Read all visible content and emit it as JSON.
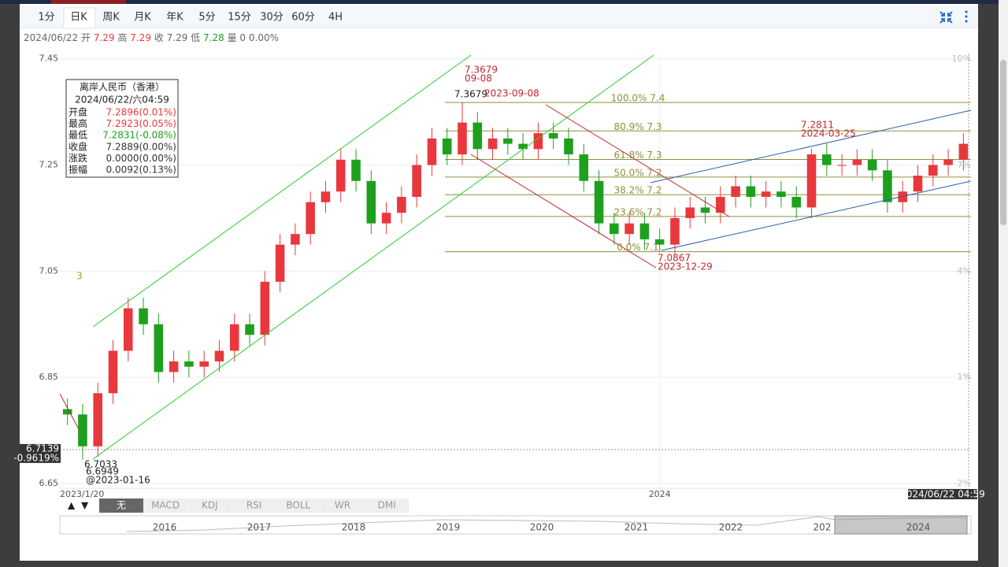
{
  "tabs": [
    "1分",
    "日K",
    "周K",
    "月K",
    "年K",
    "5分",
    "15分",
    "30分",
    "60分",
    "4H"
  ],
  "active_tab": 1,
  "info_bar": {
    "date": "2024/06/22",
    "items": [
      {
        "label": "开",
        "value": 7.29,
        "color": "#e8383d"
      },
      {
        "label": "高",
        "value": 7.29,
        "color": "#e8383d"
      },
      {
        "label": "收",
        "value": 7.29,
        "color": "#666666"
      },
      {
        "label": "低",
        "value": 7.28,
        "color": "#1ea01e"
      },
      {
        "label": "量",
        "value": 0,
        "color": "#666666"
      }
    ],
    "change": "0.00%"
  },
  "tooltip": {
    "title": "离岸人民币（香港）",
    "date": "2024/06/22/六04:59",
    "rows": [
      {
        "label": "开盘",
        "value": "7.2896(0.01%)",
        "color": "#e8383d"
      },
      {
        "label": "最高",
        "value": "7.2923(0.05%)",
        "color": "#e8383d"
      },
      {
        "label": "最低",
        "value": "7.2831(-0.08%)",
        "color": "#1ea01e"
      },
      {
        "label": "收盘",
        "value": "7.2889(0.00%)",
        "color": "#333333"
      },
      {
        "label": "涨跌",
        "value": "0.0000(0.00%)",
        "color": "#333333"
      },
      {
        "label": "振幅",
        "value": "0.0092(0.13%)",
        "color": "#333333"
      }
    ]
  },
  "chart_data": {
    "type": "candlestick",
    "categories": [
      "2023/1/20",
      null,
      null,
      null,
      null,
      null,
      null,
      null,
      null,
      null,
      null,
      null,
      null,
      null,
      null,
      null,
      null,
      null,
      null,
      null,
      null,
      null,
      null,
      null,
      null,
      null,
      null,
      null,
      null,
      null,
      null,
      null,
      null,
      null,
      null,
      null,
      null,
      null,
      null,
      "2024",
      null,
      null,
      null,
      null,
      null,
      null,
      null,
      null,
      null,
      null,
      null,
      null,
      null,
      null,
      null,
      null,
      null,
      null,
      null,
      null
    ],
    "open": [
      6.79,
      6.78,
      6.72,
      6.82,
      6.9,
      6.98,
      6.95,
      6.86,
      6.88,
      6.87,
      6.88,
      6.9,
      6.95,
      6.93,
      7.03,
      7.1,
      7.12,
      7.18,
      7.2,
      7.26,
      7.22,
      7.14,
      7.16,
      7.19,
      7.25,
      7.3,
      7.27,
      7.33,
      7.28,
      7.3,
      7.29,
      7.28,
      7.31,
      7.3,
      7.27,
      7.22,
      7.14,
      7.12,
      7.14,
      7.11,
      7.1,
      7.15,
      7.17,
      7.16,
      7.19,
      7.21,
      7.19,
      7.2,
      7.19,
      7.17,
      7.27,
      7.25,
      7.25,
      7.26,
      7.24,
      7.18,
      7.2,
      7.23,
      7.25,
      7.26
    ],
    "high": [
      6.81,
      6.8,
      6.84,
      6.92,
      7.0,
      7.0,
      6.97,
      6.9,
      6.9,
      6.9,
      6.92,
      6.97,
      6.97,
      7.05,
      7.12,
      7.14,
      7.2,
      7.22,
      7.28,
      7.28,
      7.24,
      7.18,
      7.21,
      7.27,
      7.32,
      7.32,
      7.3679,
      7.35,
      7.32,
      7.32,
      7.31,
      7.33,
      7.33,
      7.32,
      7.29,
      7.24,
      7.16,
      7.16,
      7.16,
      7.13,
      7.17,
      7.19,
      7.19,
      7.21,
      7.23,
      7.23,
      7.22,
      7.22,
      7.21,
      7.2811,
      7.29,
      7.27,
      7.28,
      7.28,
      7.26,
      7.22,
      7.25,
      7.27,
      7.28,
      7.31
    ],
    "low": [
      6.76,
      6.6949,
      6.7,
      6.8,
      6.88,
      6.93,
      6.84,
      6.84,
      6.85,
      6.85,
      6.86,
      6.88,
      6.91,
      6.91,
      7.01,
      7.08,
      7.1,
      7.16,
      7.18,
      7.2,
      7.12,
      7.12,
      7.14,
      7.17,
      7.23,
      7.25,
      7.25,
      7.26,
      7.26,
      7.27,
      7.26,
      7.26,
      7.28,
      7.25,
      7.2,
      7.12,
      7.1,
      7.1,
      7.09,
      7.0867,
      7.08,
      7.13,
      7.14,
      7.14,
      7.17,
      7.17,
      7.17,
      7.17,
      7.15,
      7.15,
      7.23,
      7.23,
      7.23,
      7.22,
      7.16,
      7.16,
      7.18,
      7.21,
      7.23,
      7.24
    ],
    "close": [
      6.78,
      6.72,
      6.82,
      6.9,
      6.98,
      6.95,
      6.86,
      6.88,
      6.87,
      6.88,
      6.9,
      6.95,
      6.93,
      7.03,
      7.1,
      7.12,
      7.18,
      7.2,
      7.26,
      7.22,
      7.14,
      7.16,
      7.19,
      7.25,
      7.3,
      7.27,
      7.33,
      7.28,
      7.3,
      7.29,
      7.28,
      7.31,
      7.3,
      7.27,
      7.22,
      7.14,
      7.12,
      7.14,
      7.11,
      7.1,
      7.15,
      7.17,
      7.16,
      7.19,
      7.21,
      7.19,
      7.2,
      7.19,
      7.17,
      7.27,
      7.25,
      7.25,
      7.26,
      7.24,
      7.18,
      7.2,
      7.23,
      7.25,
      7.26,
      7.29
    ],
    "up_color": "#e8383d",
    "down_color": "#1ea01e",
    "ylim": [
      6.641,
      7.46
    ],
    "yticks": [
      6.65,
      6.85,
      7.05,
      7.25,
      7.45
    ],
    "y2lim": [
      -2.134,
      10.156
    ],
    "y2ticks": [
      {
        "value": -2,
        "label": "-2%"
      },
      {
        "value": 1,
        "label": "1%"
      },
      {
        "value": 4,
        "label": "4%"
      },
      {
        "value": 7,
        "label": "7%"
      },
      {
        "value": 10,
        "label": "10%"
      }
    ],
    "grid": true,
    "fib_levels": [
      {
        "value": 7.3679,
        "label": "100.0% 7.4"
      },
      {
        "value": 7.3142,
        "label": "80.9% 7.3"
      },
      {
        "value": 7.2605,
        "label": "61.8% 7.3"
      },
      {
        "value": 7.2273,
        "label": "50.0% 7.2"
      },
      {
        "value": 7.1941,
        "label": "38.2% 7.2"
      },
      {
        "value": 7.1531,
        "label": "23.6% 7.2"
      },
      {
        "value": 7.0867,
        "label": "0.0% 7.1"
      }
    ],
    "annotations": [
      "7.3679",
      "09-08",
      "7.3679",
      "2023-09-08",
      "7.2811",
      "2024-03-25",
      "7.0867",
      "2023-12-29",
      "6.7033",
      "6.6949",
      "@2023-01-16",
      "3"
    ],
    "crosshair": {
      "y": 6.7139,
      "change": {
        "value": -0.9619,
        "label": "-0.9619%"
      },
      "time": "2024/06/22 04:59"
    }
  },
  "indicator_tabs": [
    "无",
    "MACD",
    "KDJ",
    "RSI",
    "BOLL",
    "WR",
    "DMI"
  ],
  "navigator": {
    "labels": [
      "2016",
      "2017",
      "2018",
      "2019",
      "2020",
      "2021",
      "2022",
      "202",
      "2024"
    ]
  }
}
